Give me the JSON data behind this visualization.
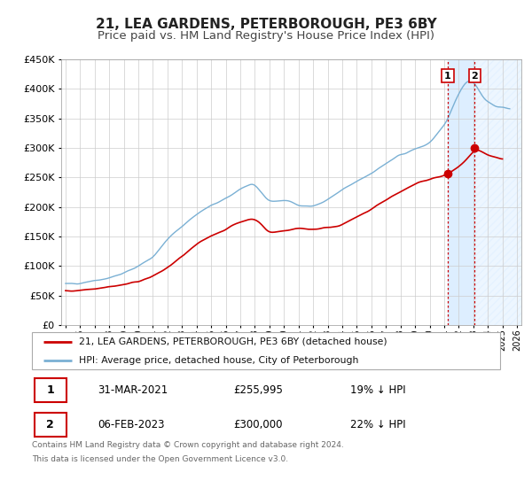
{
  "title": "21, LEA GARDENS, PETERBOROUGH, PE3 6BY",
  "subtitle": "Price paid vs. HM Land Registry's House Price Index (HPI)",
  "legend_line1": "21, LEA GARDENS, PETERBOROUGH, PE3 6BY (detached house)",
  "legend_line2": "HPI: Average price, detached house, City of Peterborough",
  "table_row1_date": "31-MAR-2021",
  "table_row1_price": "£255,995",
  "table_row1_hpi": "19% ↓ HPI",
  "table_row2_date": "06-FEB-2023",
  "table_row2_price": "£300,000",
  "table_row2_hpi": "22% ↓ HPI",
  "footer1": "Contains HM Land Registry data © Crown copyright and database right 2024.",
  "footer2": "This data is licensed under the Open Government Licence v3.0.",
  "ylim": [
    0,
    450000
  ],
  "yticks": [
    0,
    50000,
    100000,
    150000,
    200000,
    250000,
    300000,
    350000,
    400000,
    450000
  ],
  "xlim_start": 1994.7,
  "xlim_end": 2026.3,
  "xtick_years": [
    1995,
    1996,
    1997,
    1998,
    1999,
    2000,
    2001,
    2002,
    2003,
    2004,
    2005,
    2006,
    2007,
    2008,
    2009,
    2010,
    2011,
    2012,
    2013,
    2014,
    2015,
    2016,
    2017,
    2018,
    2019,
    2020,
    2021,
    2022,
    2023,
    2024,
    2025,
    2026
  ],
  "marker1_x": 2021.25,
  "marker1_y": 255995,
  "marker2_x": 2023.1,
  "marker2_y": 300000,
  "vline1_x": 2021.25,
  "vline2_x": 2023.1,
  "shade_start": 2021.25,
  "shade_end": 2023.1,
  "hatch_start": 2023.1,
  "hatch_end": 2026.3,
  "red_line_color": "#cc0000",
  "blue_line_color": "#7ab0d4",
  "shade_color": "#ddeeff",
  "hatch_color": "#ddeeff",
  "background_color": "#ffffff",
  "grid_color": "#cccccc",
  "title_fontsize": 11,
  "subtitle_fontsize": 9.5,
  "hpi_anchors_x": [
    1995,
    1996,
    1997,
    1998,
    1999,
    2000,
    2001,
    2002,
    2003,
    2004,
    2005,
    2006,
    2007,
    2008,
    2009,
    2010,
    2011,
    2012,
    2013,
    2014,
    2015,
    2016,
    2017,
    2018,
    2019,
    2020,
    2021,
    2021.5,
    2022,
    2022.5,
    2023,
    2023.3,
    2024,
    2025
  ],
  "hpi_anchors_y": [
    68000,
    72000,
    76000,
    80000,
    87000,
    100000,
    115000,
    145000,
    168000,
    188000,
    202000,
    213000,
    232000,
    238000,
    208000,
    212000,
    204000,
    200000,
    212000,
    228000,
    243000,
    258000,
    273000,
    288000,
    298000,
    308000,
    335000,
    365000,
    395000,
    415000,
    418000,
    400000,
    375000,
    368000
  ],
  "prop_anchors_x": [
    1995,
    1996,
    1997,
    1998,
    1999,
    2000,
    2001,
    2002,
    2003,
    2004,
    2005,
    2006,
    2007,
    2008,
    2009,
    2010,
    2011,
    2012,
    2013,
    2014,
    2015,
    2016,
    2017,
    2018,
    2019,
    2020,
    2021,
    2021.25,
    2022,
    2022.5,
    2023,
    2023.1,
    2024,
    2025
  ],
  "prop_anchors_y": [
    57000,
    59000,
    62000,
    65000,
    68000,
    74000,
    82000,
    97000,
    116000,
    136000,
    152000,
    162000,
    175000,
    182000,
    155000,
    160000,
    164000,
    162000,
    165000,
    170000,
    182000,
    196000,
    212000,
    226000,
    238000,
    248000,
    252000,
    255995,
    268000,
    278000,
    295000,
    300000,
    286000,
    280000
  ]
}
